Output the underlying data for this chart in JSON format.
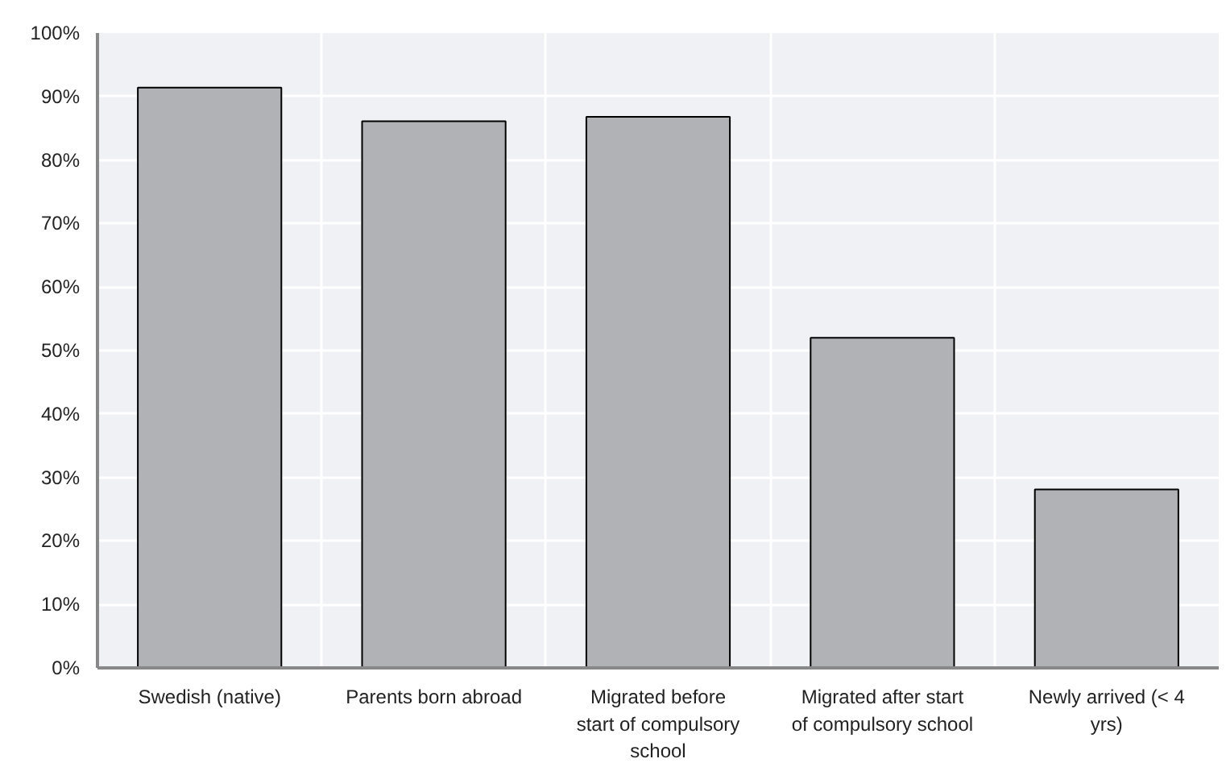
{
  "chart_data": {
    "type": "bar",
    "categories": [
      "Swedish (native)",
      "Parents born abroad",
      "Migrated before start of compulsory school",
      "Migrated after start of compulsory school",
      "Newly arrived (< 4 yrs)"
    ],
    "values": [
      91.4,
      86.1,
      86.8,
      52.0,
      28.1
    ],
    "color": "#b1b2b6",
    "ylim": [
      0,
      100
    ],
    "yticks": [
      {
        "value": 0,
        "label": "0%"
      },
      {
        "value": 10,
        "label": "10%"
      },
      {
        "value": 20,
        "label": "20%"
      },
      {
        "value": 30,
        "label": "30%"
      },
      {
        "value": 40,
        "label": "40%"
      },
      {
        "value": 50,
        "label": "50%"
      },
      {
        "value": 60,
        "label": "60%"
      },
      {
        "value": 70,
        "label": "70%"
      },
      {
        "value": 80,
        "label": "80%"
      },
      {
        "value": 90,
        "label": "90%"
      },
      {
        "value": 100,
        "label": "100%"
      }
    ],
    "grid": true
  }
}
